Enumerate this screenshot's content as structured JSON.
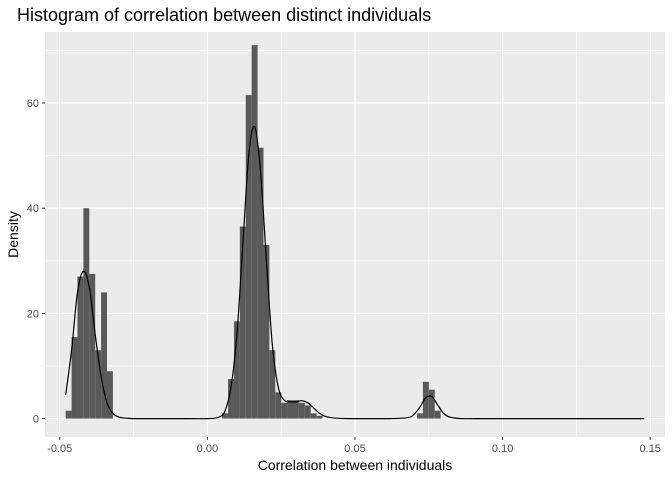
{
  "chart_data": {
    "type": "histogram",
    "title": "Histogram of correlation between distinct individuals",
    "xlabel": "Correlation between individuals",
    "ylabel": "Density",
    "xlim": [
      -0.055,
      0.155
    ],
    "ylim": [
      -3.5,
      73.5
    ],
    "x_ticks": [
      -0.05,
      0.0,
      0.05,
      0.1,
      0.15
    ],
    "x_tick_labels": [
      "-0.05",
      "0.00",
      "0.05",
      "0.10",
      "0.15"
    ],
    "y_ticks": [
      0,
      20,
      40,
      60
    ],
    "y_tick_labels": [
      "0",
      "20",
      "40",
      "60"
    ],
    "grid": true,
    "colors": {
      "panel_background": "#ebebeb",
      "grid_major": "#ffffff",
      "bar_fill": "#595959",
      "density_line": "#000000",
      "tick_text": "#4d4d4d"
    },
    "bin_width": 0.002,
    "bins": [
      {
        "x": -0.047,
        "density": 1.5
      },
      {
        "x": -0.045,
        "density": 15.5
      },
      {
        "x": -0.043,
        "density": 27.0
      },
      {
        "x": -0.041,
        "density": 40.0
      },
      {
        "x": -0.039,
        "density": 27.5
      },
      {
        "x": -0.037,
        "density": 13.0
      },
      {
        "x": -0.035,
        "density": 24.0
      },
      {
        "x": -0.033,
        "density": 9.0
      },
      {
        "x": 0.006,
        "density": 1.0
      },
      {
        "x": 0.008,
        "density": 7.5
      },
      {
        "x": 0.01,
        "density": 18.5
      },
      {
        "x": 0.012,
        "density": 36.5
      },
      {
        "x": 0.014,
        "density": 61.5
      },
      {
        "x": 0.016,
        "density": 71.0
      },
      {
        "x": 0.018,
        "density": 51.5
      },
      {
        "x": 0.02,
        "density": 33.0
      },
      {
        "x": 0.022,
        "density": 13.0
      },
      {
        "x": 0.024,
        "density": 5.0
      },
      {
        "x": 0.026,
        "density": 3.0
      },
      {
        "x": 0.028,
        "density": 3.5
      },
      {
        "x": 0.03,
        "density": 3.5
      },
      {
        "x": 0.032,
        "density": 3.0
      },
      {
        "x": 0.034,
        "density": 2.5
      },
      {
        "x": 0.036,
        "density": 1.0
      },
      {
        "x": 0.038,
        "density": 0.5
      },
      {
        "x": 0.072,
        "density": 1.0
      },
      {
        "x": 0.074,
        "density": 7.0
      },
      {
        "x": 0.076,
        "density": 5.5
      },
      {
        "x": 0.078,
        "density": 1.5
      }
    ],
    "density_curve": {
      "x": [
        -0.048,
        -0.046,
        -0.044,
        -0.042,
        -0.04,
        -0.038,
        -0.036,
        -0.034,
        -0.032,
        -0.03,
        -0.028,
        -0.025,
        -0.02,
        -0.01,
        0.0,
        0.004,
        0.006,
        0.008,
        0.01,
        0.012,
        0.014,
        0.016,
        0.018,
        0.02,
        0.022,
        0.024,
        0.026,
        0.028,
        0.03,
        0.032,
        0.034,
        0.036,
        0.038,
        0.04,
        0.043,
        0.048,
        0.055,
        0.062,
        0.068,
        0.07,
        0.072,
        0.074,
        0.076,
        0.078,
        0.08,
        0.082,
        0.086,
        0.095,
        0.11,
        0.13,
        0.148
      ],
      "y": [
        4.5,
        13.0,
        24.0,
        28.0,
        25.0,
        16.0,
        8.0,
        3.0,
        1.0,
        0.3,
        0.1,
        0.0,
        0.0,
        0.0,
        0.0,
        0.3,
        1.5,
        6.0,
        16.0,
        33.0,
        50.0,
        55.5,
        47.0,
        30.0,
        14.0,
        6.0,
        3.5,
        3.2,
        3.2,
        3.4,
        3.0,
        2.0,
        1.0,
        0.4,
        0.1,
        0.0,
        0.0,
        0.0,
        0.2,
        0.8,
        2.2,
        4.0,
        4.2,
        2.6,
        1.0,
        0.3,
        0.0,
        0.0,
        0.0,
        0.0,
        0.0
      ]
    }
  }
}
